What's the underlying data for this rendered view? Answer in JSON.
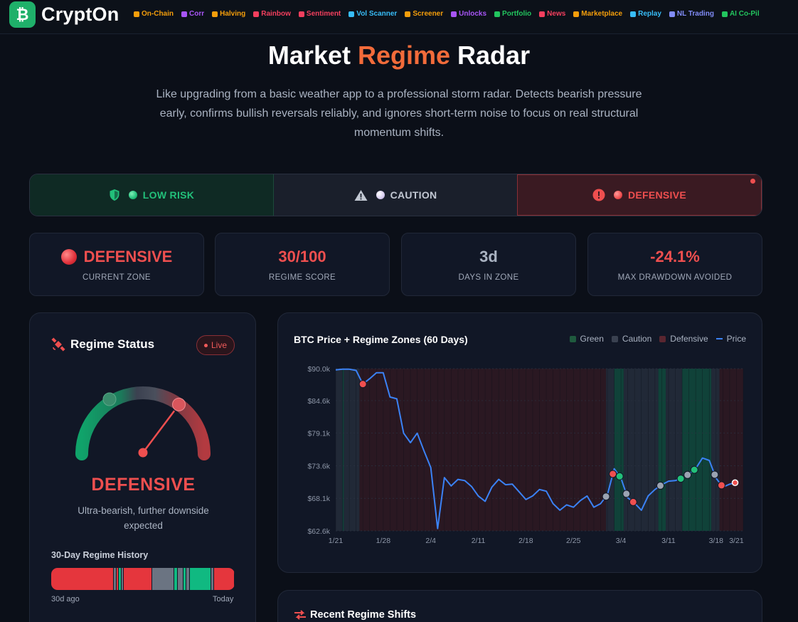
{
  "brand": {
    "logo_glyph": "₿",
    "name": "CryptOn",
    "accent": "#1fb06a"
  },
  "nav": [
    {
      "label": "On-Chain",
      "color": "#f59e0b",
      "icon": "chain-icon"
    },
    {
      "label": "Corr",
      "color": "#a855f7",
      "icon": "network-icon"
    },
    {
      "label": "Halving",
      "color": "#f59e0b",
      "icon": "diamond-icon"
    },
    {
      "label": "Rainbow",
      "color": "#f43f5e",
      "icon": "rainbow-icon"
    },
    {
      "label": "Sentiment",
      "color": "#f43f5e",
      "icon": "flame-icon"
    },
    {
      "label": "Vol Scanner",
      "color": "#38bdf8",
      "icon": "bolt-icon"
    },
    {
      "label": "Screener",
      "color": "#f59e0b",
      "icon": "search-icon"
    },
    {
      "label": "Unlocks",
      "color": "#a855f7",
      "icon": "unlock-icon"
    },
    {
      "label": "Portfolio",
      "color": "#22c55e",
      "icon": "wallet-icon"
    },
    {
      "label": "News",
      "color": "#f43f5e",
      "icon": "news-icon"
    },
    {
      "label": "Marketplace",
      "color": "#f59e0b",
      "icon": "store-icon"
    },
    {
      "label": "Replay",
      "color": "#38bdf8",
      "icon": "replay-icon"
    },
    {
      "label": "NL Trading",
      "color": "#818cf8",
      "icon": "wand-icon"
    },
    {
      "label": "AI Co-Pil",
      "color": "#22c55e",
      "icon": "robot-icon"
    }
  ],
  "hero": {
    "title_part1": "Market ",
    "title_accent": "Regime",
    "title_part2": " Radar",
    "subtitle": "Like upgrading from a basic weather app to a professional storm radar. Detects bearish pressure early, confirms bullish reversals reliably, and ignores short-term noise to focus on real structural momentum shifts."
  },
  "zones": [
    {
      "label": "LOW RISK",
      "icon": "shield-icon",
      "dot": "#22c07a",
      "color": "#22c07a"
    },
    {
      "label": "CAUTION",
      "icon": "warning-icon",
      "dot": "#d8cdf0",
      "color": "#c2c8d3"
    },
    {
      "label": "DEFENSIVE",
      "icon": "alert-icon",
      "dot": "#ef4f4f",
      "color": "#ef4f4f",
      "active": true
    }
  ],
  "stats": [
    {
      "value": "DEFENSIVE",
      "label": "CURRENT ZONE",
      "color": "#ef4f4f"
    },
    {
      "value": "30/100",
      "label": "REGIME SCORE",
      "color": "#ef4f4f"
    },
    {
      "value": "3d",
      "label": "DAYS IN ZONE",
      "color": "#aab3c2"
    },
    {
      "value": "-24.1%",
      "label": "MAX DRAWDOWN AVOIDED",
      "color": "#ef4f4f"
    }
  ],
  "status": {
    "title": "Regime Status",
    "live": "Live",
    "score": 30,
    "zone": "DEFENSIVE",
    "description": "Ultra-bearish, further downside expected",
    "history_title": "30-Day Regime History",
    "history_start": "30d ago",
    "history_end": "Today",
    "history": [
      {
        "zone": "defensive",
        "days": 8
      },
      {
        "zone": "caution",
        "days": 0.4
      },
      {
        "zone": "defensive",
        "days": 0.3
      },
      {
        "zone": "low",
        "days": 0.3
      },
      {
        "zone": "caution",
        "days": 0.35
      },
      {
        "zone": "defensive",
        "days": 3.6
      },
      {
        "zone": "caution",
        "days": 2.8
      },
      {
        "zone": "low",
        "days": 0.5
      },
      {
        "zone": "caution",
        "days": 0.7
      },
      {
        "zone": "low",
        "days": 0.4
      },
      {
        "zone": "caution",
        "days": 0.5
      },
      {
        "zone": "low",
        "days": 2.7
      },
      {
        "zone": "caution",
        "days": 0.4
      },
      {
        "zone": "defensive",
        "days": 2.6
      }
    ]
  },
  "zone_colors": {
    "low": "#10b981",
    "caution": "#6b7482",
    "defensive": "#e5363d"
  },
  "chart_data": {
    "type": "line",
    "title": "BTC Price + Regime Zones (60 Days)",
    "legend": [
      {
        "name": "Green",
        "color": "#1f5a3e",
        "kind": "box"
      },
      {
        "name": "Caution",
        "color": "#3a4150",
        "kind": "box"
      },
      {
        "name": "Defensive",
        "color": "#5a2630",
        "kind": "box"
      },
      {
        "name": "Price",
        "color": "#3b82f6",
        "kind": "line"
      }
    ],
    "y_ticks": [
      {
        "label": "$90.0k",
        "value": 90.0
      },
      {
        "label": "$84.6k",
        "value": 84.6
      },
      {
        "label": "$79.1k",
        "value": 79.1
      },
      {
        "label": "$73.6k",
        "value": 73.6
      },
      {
        "label": "$68.1k",
        "value": 68.1
      },
      {
        "label": "$62.6k",
        "value": 62.6
      }
    ],
    "x_ticks": [
      {
        "label": "1/21",
        "day": 0
      },
      {
        "label": "1/28",
        "day": 7
      },
      {
        "label": "2/4",
        "day": 14
      },
      {
        "label": "2/11",
        "day": 21
      },
      {
        "label": "2/18",
        "day": 28
      },
      {
        "label": "2/25",
        "day": 35
      },
      {
        "label": "3/4",
        "day": 42
      },
      {
        "label": "3/11",
        "day": 49
      },
      {
        "label": "3/18",
        "day": 56
      },
      {
        "label": "3/21",
        "day": 59
      }
    ],
    "ylim": [
      62.6,
      90.0
    ],
    "xlim": [
      0,
      60
    ],
    "prices": [
      89.8,
      89.9,
      89.9,
      89.7,
      87.4,
      88.3,
      89.3,
      89.3,
      85.2,
      84.9,
      79.1,
      77.5,
      79.1,
      76.1,
      73.3,
      63.0,
      71.6,
      70.2,
      71.3,
      71.1,
      70.1,
      68.5,
      67.6,
      70.0,
      71.3,
      70.4,
      70.5,
      69.2,
      67.9,
      68.5,
      69.6,
      69.3,
      67.2,
      66.1,
      67.0,
      66.6,
      67.7,
      68.5,
      66.6,
      67.2,
      68.7,
      73.1,
      71.5,
      68.2,
      67.3,
      66.1,
      68.5,
      69.6,
      70.4,
      71.0,
      71.1,
      71.5,
      72.2,
      73.1,
      74.9,
      74.5,
      71.5,
      70.0,
      70.5,
      70.8
    ],
    "bands": [
      {
        "zone": "caution",
        "from": 0,
        "to": 1.0
      },
      {
        "zone": "low",
        "from": 1.0,
        "to": 1.2
      },
      {
        "zone": "caution",
        "from": 1.2,
        "to": 3.5
      },
      {
        "zone": "defensive",
        "from": 3.5,
        "to": 39.8
      },
      {
        "zone": "caution",
        "from": 39.8,
        "to": 41.0
      },
      {
        "zone": "low",
        "from": 41.0,
        "to": 42.4
      },
      {
        "zone": "caution",
        "from": 42.4,
        "to": 47.5
      },
      {
        "zone": "low",
        "from": 47.5,
        "to": 48.6
      },
      {
        "zone": "caution",
        "from": 48.6,
        "to": 51.0
      },
      {
        "zone": "low",
        "from": 51.0,
        "to": 55.3
      },
      {
        "zone": "caution",
        "from": 55.3,
        "to": 56.5
      },
      {
        "zone": "defensive",
        "from": 56.5,
        "to": 60.0
      }
    ],
    "markers": [
      {
        "day": 4.0,
        "zone": "defensive"
      },
      {
        "day": 39.8,
        "zone": "caution"
      },
      {
        "day": 40.8,
        "zone": "defensive"
      },
      {
        "day": 41.8,
        "zone": "low"
      },
      {
        "day": 42.8,
        "zone": "caution"
      },
      {
        "day": 43.8,
        "zone": "defensive"
      },
      {
        "day": 47.8,
        "zone": "caution"
      },
      {
        "day": 50.8,
        "zone": "low"
      },
      {
        "day": 51.8,
        "zone": "caution"
      },
      {
        "day": 52.8,
        "zone": "low"
      },
      {
        "day": 55.8,
        "zone": "caution"
      },
      {
        "day": 56.8,
        "zone": "defensive"
      },
      {
        "day": 58.8,
        "zone": "defensive",
        "current": true
      }
    ],
    "grid": true,
    "legend_position": "top-right"
  },
  "shifts": {
    "title": "Recent Regime Shifts"
  }
}
